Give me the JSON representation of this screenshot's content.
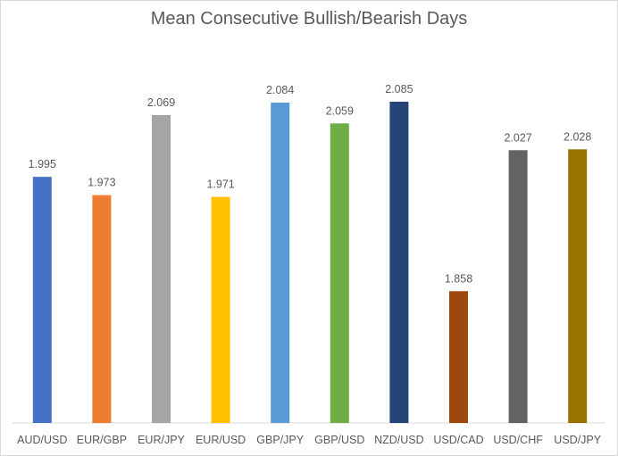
{
  "chart_data": {
    "type": "bar",
    "title": "Mean Consecutive Bullish/Bearish Days",
    "categories": [
      "AUD/USD",
      "EUR/GBP",
      "EUR/JPY",
      "EUR/USD",
      "GBP/JPY",
      "GBP/USD",
      "NZD/USD",
      "USD/CAD",
      "USD/CHF",
      "USD/JPY"
    ],
    "values": [
      1.995,
      1.973,
      2.069,
      1.971,
      2.084,
      2.059,
      2.085,
      1.858,
      2.027,
      2.028
    ],
    "value_labels": [
      "1.995",
      "1.973",
      "2.069",
      "1.971",
      "2.084",
      "2.059",
      "2.085",
      "1.858",
      "2.027",
      "2.028"
    ],
    "colors": [
      "#4472C4",
      "#ED7D31",
      "#A5A5A5",
      "#FFC000",
      "#5B9BD5",
      "#70AD47",
      "#264478",
      "#9E480E",
      "#636363",
      "#997300"
    ],
    "ylim": [
      1.7,
      2.1
    ],
    "grid": false,
    "legend": "none"
  }
}
